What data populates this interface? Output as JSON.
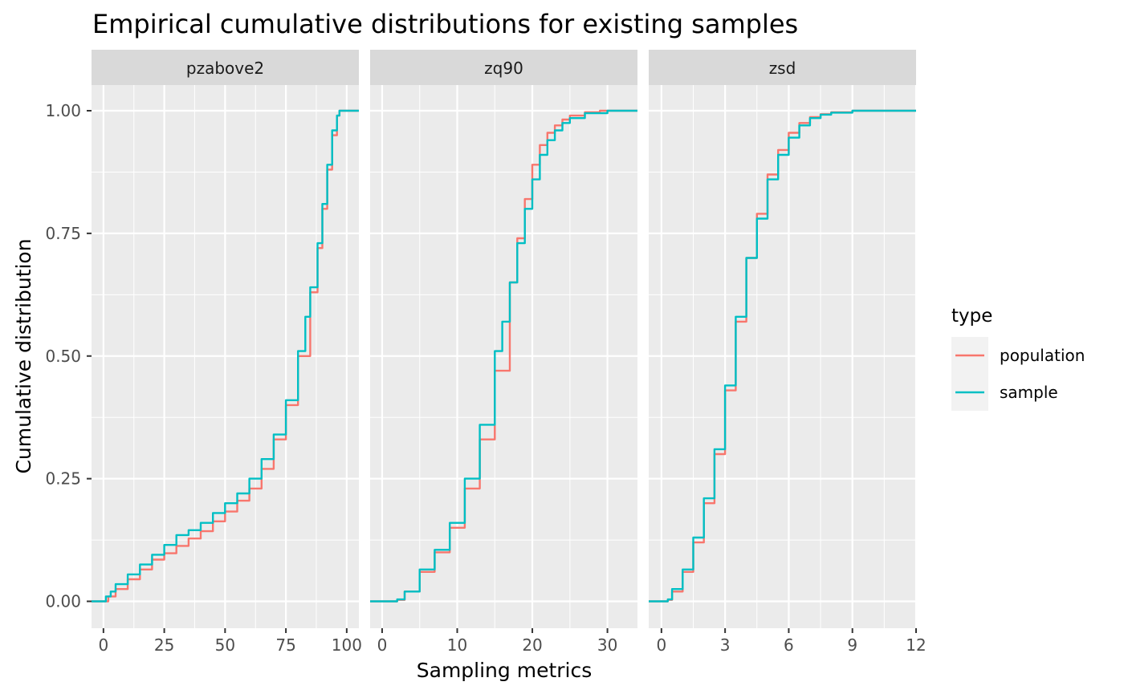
{
  "chart_data": {
    "type": "line",
    "title": "Empirical cumulative distributions for existing samples",
    "xlabel": "Sampling metrics",
    "ylabel": "Cumulative distribution",
    "legend": {
      "title": "type",
      "position": "right",
      "entries": [
        {
          "name": "population",
          "color": "#F8766D"
        },
        {
          "name": "sample",
          "color": "#00BFC4"
        }
      ]
    },
    "grid": true,
    "y": {
      "ylim": [
        -0.05,
        1.05
      ],
      "ticks": [
        0,
        0.25,
        0.5,
        0.75,
        1
      ],
      "tick_labels": [
        "0.00",
        "0.25",
        "0.50",
        "0.75",
        "1.00"
      ]
    },
    "panels": [
      {
        "facet": "pzabove2",
        "xlim": [
          -4.9,
          105
        ],
        "xticks": [
          0,
          25,
          50,
          75,
          100
        ],
        "series": [
          {
            "name": "population",
            "x": [
              -4.9,
              0,
              2,
              5,
              10,
              15,
              20,
              25,
              30,
              35,
              40,
              45,
              50,
              55,
              60,
              65,
              70,
              75,
              80,
              85,
              88,
              90,
              92,
              94,
              96,
              97,
              98,
              100,
              105
            ],
            "y": [
              0,
              0,
              0.01,
              0.025,
              0.045,
              0.065,
              0.085,
              0.098,
              0.113,
              0.128,
              0.143,
              0.163,
              0.183,
              0.205,
              0.23,
              0.27,
              0.33,
              0.4,
              0.5,
              0.63,
              0.72,
              0.8,
              0.88,
              0.95,
              0.99,
              1,
              1,
              1,
              1
            ]
          },
          {
            "name": "sample",
            "x": [
              -4.9,
              0,
              1,
              3,
              5,
              10,
              15,
              20,
              25,
              30,
              35,
              40,
              45,
              50,
              55,
              60,
              65,
              70,
              75,
              80,
              83,
              85,
              88,
              90,
              92,
              94,
              96,
              97,
              98,
              100,
              105
            ],
            "y": [
              0,
              0,
              0.01,
              0.02,
              0.035,
              0.055,
              0.075,
              0.095,
              0.115,
              0.135,
              0.145,
              0.16,
              0.18,
              0.2,
              0.22,
              0.25,
              0.29,
              0.34,
              0.41,
              0.51,
              0.58,
              0.64,
              0.73,
              0.81,
              0.89,
              0.96,
              0.99,
              1,
              1,
              1,
              1
            ]
          }
        ]
      },
      {
        "facet": "zq90",
        "xlim": [
          -1.6,
          34
        ],
        "xticks": [
          0,
          10,
          20,
          30
        ],
        "series": [
          {
            "name": "population",
            "x": [
              -1.6,
              2,
              3,
              5,
              7,
              9,
              11,
              13,
              15,
              17,
              18,
              19,
              20,
              21,
              22,
              23,
              24,
              25,
              27,
              29,
              34
            ],
            "y": [
              0,
              0.003,
              0.02,
              0.06,
              0.1,
              0.15,
              0.23,
              0.33,
              0.47,
              0.65,
              0.74,
              0.82,
              0.89,
              0.93,
              0.955,
              0.97,
              0.982,
              0.99,
              0.997,
              1,
              1
            ]
          },
          {
            "name": "sample",
            "x": [
              -1.6,
              2,
              3,
              5,
              7,
              9,
              11,
              13,
              15,
              16,
              17,
              18,
              19,
              20,
              21,
              22,
              23,
              24,
              25,
              27,
              30,
              34
            ],
            "y": [
              0,
              0.004,
              0.02,
              0.065,
              0.105,
              0.16,
              0.25,
              0.36,
              0.51,
              0.57,
              0.65,
              0.73,
              0.8,
              0.86,
              0.91,
              0.94,
              0.96,
              0.975,
              0.985,
              0.995,
              1,
              1
            ]
          }
        ]
      },
      {
        "facet": "zsd",
        "xlim": [
          -0.6,
          12
        ],
        "xticks": [
          0,
          3,
          6,
          9,
          12
        ],
        "tick_labels": [
          "0",
          "3",
          "6",
          "9",
          "12"
        ],
        "series": [
          {
            "name": "population",
            "x": [
              -0.6,
              0.3,
              0.5,
              1,
              1.5,
              2,
              2.5,
              3,
              3.5,
              4,
              4.5,
              5,
              5.5,
              6,
              6.5,
              7,
              7.5,
              8,
              9,
              12
            ],
            "y": [
              0,
              0.003,
              0.02,
              0.06,
              0.12,
              0.2,
              0.3,
              0.43,
              0.57,
              0.7,
              0.79,
              0.87,
              0.92,
              0.955,
              0.975,
              0.987,
              0.993,
              0.997,
              1,
              1
            ]
          },
          {
            "name": "sample",
            "x": [
              -0.6,
              0.3,
              0.5,
              1,
              1.5,
              2,
              2.5,
              3,
              3.5,
              4,
              4.5,
              5,
              5.5,
              6,
              6.5,
              7,
              7.5,
              8,
              9,
              12
            ],
            "y": [
              0,
              0.004,
              0.025,
              0.065,
              0.13,
              0.21,
              0.31,
              0.44,
              0.58,
              0.7,
              0.78,
              0.86,
              0.91,
              0.945,
              0.97,
              0.985,
              0.992,
              0.996,
              1,
              1
            ]
          }
        ]
      }
    ]
  }
}
